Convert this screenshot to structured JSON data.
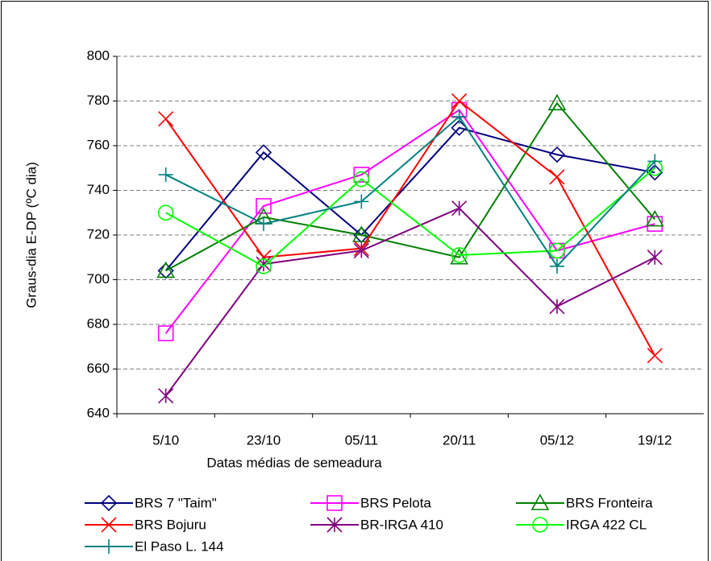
{
  "chart_data": {
    "type": "line",
    "y_label": "Graus-dia E-DP (ºC dia)",
    "x_label": "Datas médias de semeadura",
    "categories": [
      "5/10",
      "23/10",
      "05/11",
      "20/11",
      "05/12",
      "19/12"
    ],
    "ylim": [
      640,
      800
    ],
    "yticks": [
      640,
      660,
      680,
      700,
      720,
      740,
      760,
      780,
      800
    ],
    "grid": true,
    "legend": "bottom",
    "series": [
      {
        "name": "BRS 7 \"Taim\"",
        "color": "#000080",
        "marker": "diamond",
        "values": [
          704,
          757,
          720,
          768,
          756,
          748
        ]
      },
      {
        "name": "BRS Pelota",
        "color": "#ff00ff",
        "marker": "square",
        "values": [
          676,
          733,
          747,
          776,
          713,
          725
        ]
      },
      {
        "name": "BRS Fronteira",
        "color": "#008000",
        "marker": "triangle",
        "values": [
          704,
          728,
          720,
          710,
          779,
          727
        ]
      },
      {
        "name": "BRS Bojuru",
        "color": "#ff0000",
        "marker": "x",
        "values": [
          772,
          710,
          714,
          780,
          746,
          666
        ]
      },
      {
        "name": "BR-IRGA 410",
        "color": "#800080",
        "marker": "star",
        "values": [
          648,
          707,
          713,
          732,
          688,
          710
        ]
      },
      {
        "name": "IRGA 422 CL",
        "color": "#00ff00",
        "marker": "circle",
        "values": [
          730,
          706,
          745,
          711,
          713,
          750
        ]
      },
      {
        "name": "El Paso L. 144",
        "color": "#008080",
        "marker": "plus",
        "values": [
          747,
          725,
          735,
          773,
          706,
          753
        ]
      }
    ]
  }
}
